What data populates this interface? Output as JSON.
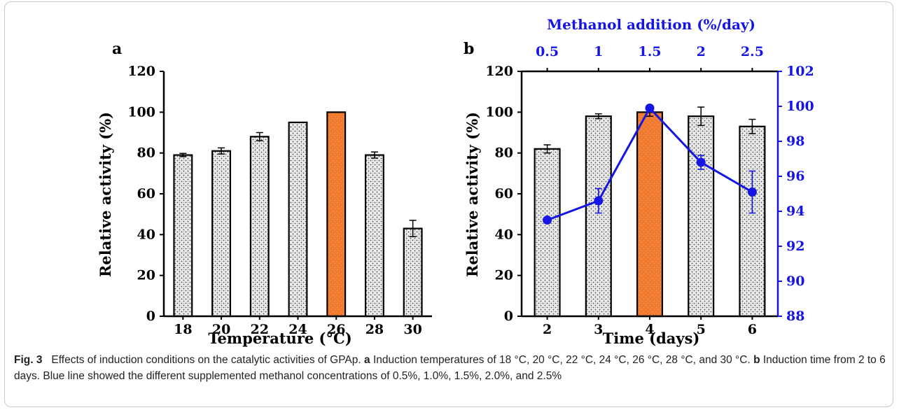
{
  "chart_data": [
    {
      "type": "bar",
      "panel_label": "a",
      "categories": [
        "18",
        "20",
        "22",
        "24",
        "26",
        "28",
        "30"
      ],
      "values": [
        79,
        81,
        88,
        95,
        100,
        79,
        43
      ],
      "errors": [
        0.8,
        1.5,
        2,
        0,
        0,
        1.5,
        4
      ],
      "highlight_index": 4,
      "xlabel": "Temperature (°C)",
      "ylabel": "Relative activity (%)",
      "ylim": [
        0,
        120
      ],
      "yticks": [
        "0",
        "20",
        "40",
        "60",
        "80",
        "100",
        "120"
      ],
      "grid": false
    },
    {
      "type": "bar",
      "panel_label": "b",
      "categories": [
        "2",
        "3",
        "4",
        "5",
        "6"
      ],
      "values": [
        82,
        98,
        100,
        98,
        93
      ],
      "errors": [
        2,
        1.2,
        2,
        4.5,
        3.5
      ],
      "highlight_index": 2,
      "xlabel": "Time (days)",
      "ylabel": "Relative activity (%)",
      "ylim": [
        0,
        120
      ],
      "yticks": [
        "0",
        "20",
        "40",
        "60",
        "80",
        "100",
        "120"
      ],
      "grid": false,
      "secondary": {
        "type": "line",
        "color": "#1515e6",
        "xlabel": "Methanol addition (%/day)",
        "x": [
          "0.5",
          "1",
          "1.5",
          "2",
          "2.5"
        ],
        "values": [
          93.5,
          94.6,
          99.9,
          96.8,
          95.1
        ],
        "errors": [
          0,
          0.7,
          0,
          0.4,
          1.2
        ],
        "ylim": [
          88,
          102
        ],
        "yticks": [
          "88",
          "90",
          "92",
          "94",
          "96",
          "98",
          "100",
          "102"
        ]
      }
    }
  ],
  "caption": {
    "fig_label": "Fig. 3",
    "main_text": "Effects of induction conditions on the catalytic activities of GPAp.",
    "a_label": "a",
    "a_text": "Induction temperatures of 18 °C, 20 °C, 22 °C, 24 °C, 26 °C, 28 °C, and 30 °C.",
    "b_label": "b",
    "b_text": "Induction time from 2 to 6 days. Blue line showed the different supplemented methanol concentrations of 0.5%, 1.0%, 1.5%, 2.0%, and 2.5%"
  },
  "colors": {
    "bar_fill": "#ececec",
    "bar_dots": "#4a4a4a",
    "highlight": "#f07a2e",
    "axis": "#000000",
    "secondary": "#1515e6"
  }
}
